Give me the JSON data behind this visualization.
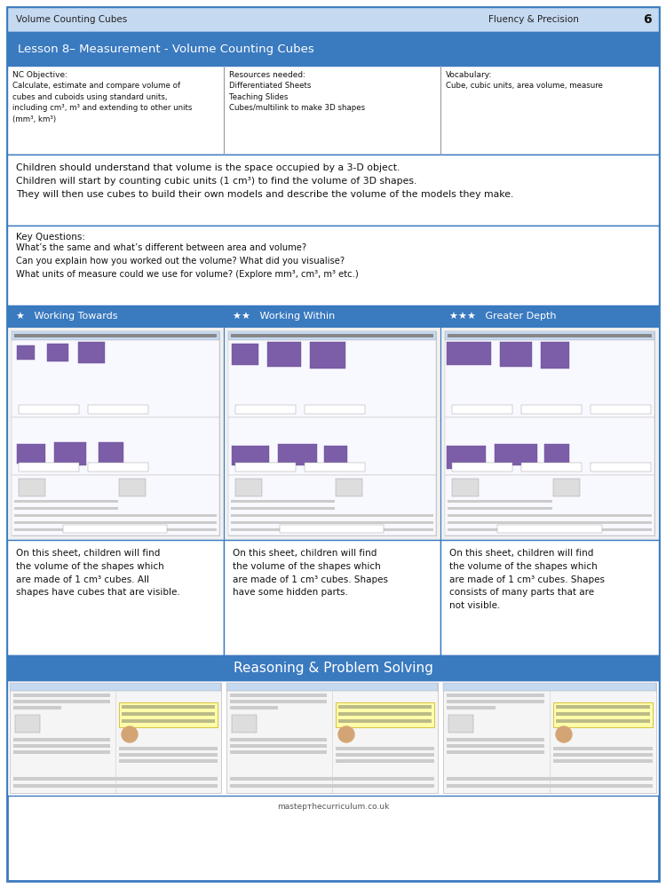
{
  "page_bg": "#ffffff",
  "outer_border_color": "#3a7abf",
  "header_bg": "#c5d9f1",
  "blue_bar_bg": "#3a7abf",
  "blue_bar_text_color": "#ffffff",
  "title_header": "Volume Counting Cubes",
  "fluency_text": "Fluency & Precision",
  "page_num": "6",
  "lesson_title": "Lesson 8– Measurement - Volume Counting Cubes",
  "nc_objective_label": "NC Objective:",
  "nc_objective_text": "Calculate, estimate and compare volume of\ncubes and cuboids using standard units,\nincluding cm³, m³ and extending to other units\n(mm³, km³)",
  "resources_label": "Resources needed:",
  "resources_text": "Differentiated Sheets\nTeaching Slides\nCubes/multilink to make 3D shapes",
  "vocab_label": "Vocabulary:",
  "vocab_text": "Cube, cubic units, area volume, measure",
  "learning_text": "Children should understand that volume is the space occupied by a 3-D object.\nChildren will start by counting cubic units (1 cm³) to find the volume of 3D shapes.\nThey will then use cubes to build their own models and describe the volume of the models they make.",
  "key_questions_label": "Key Questions:",
  "key_questions_text": "What’s the same and what’s different between area and volume?\nCan you explain how you worked out the volume? What did you visualise?\nWhat units of measure could we use for volume? (Explore mm³, cm³, m³ etc.)",
  "working_towards": "Working Towards",
  "working_within": "Working Within",
  "greater_depth": "Greater Depth",
  "desc_towards": "On this sheet, children will find\nthe volume of the shapes which\nare made of 1 cm³ cubes. All\nshapes have cubes that are visible.",
  "desc_within": "On this sheet, children will find\nthe volume of the shapes which\nare made of 1 cm³ cubes. Shapes\nhave some hidden parts.",
  "desc_depth": "On this sheet, children will find\nthe volume of the shapes which\nare made of 1 cm³ cubes. Shapes\nconsists of many parts that are\nnot visible.",
  "reasoning_title": "Reasoning & Problem Solving",
  "footer_text": "mastертhecurriculum.co.uk",
  "purple_cube": "#7b5ea7",
  "purple_cube_dark": "#6a4d96",
  "sheet_bg": "#dce9f7",
  "sheet_inner_bg": "#eef3fa",
  "sheet_header_bg": "#c5d9f1",
  "reasoning_sheet_bg": "#eef3fa"
}
